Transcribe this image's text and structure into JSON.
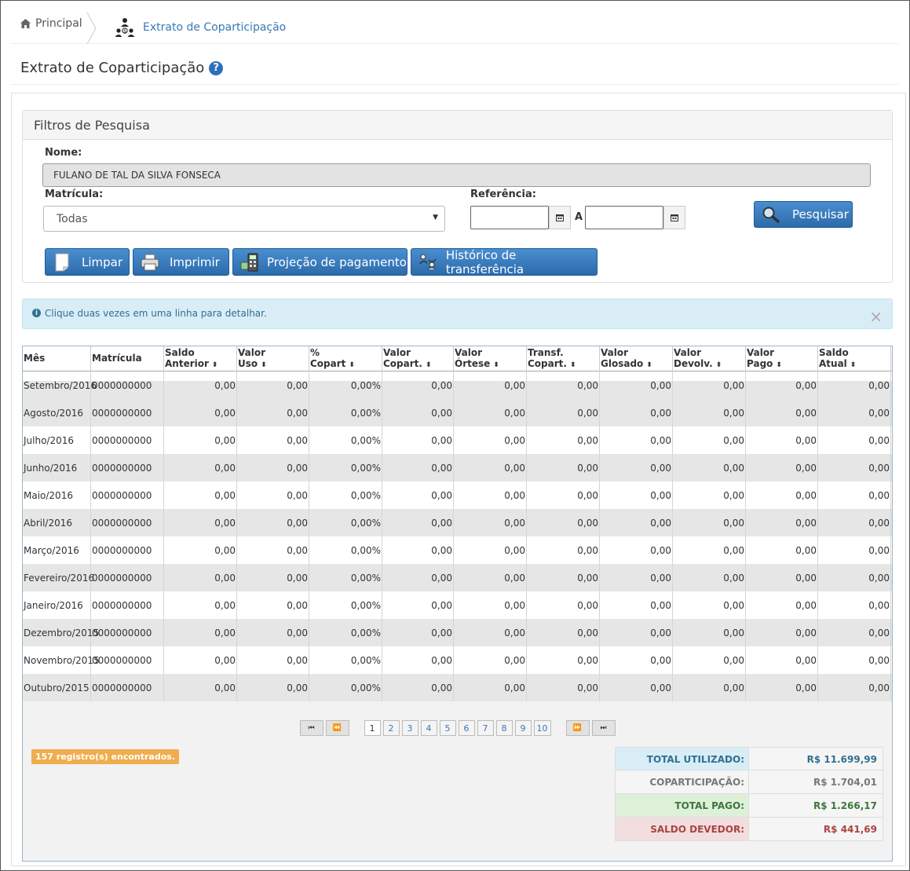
{
  "breadcrumb": {
    "home": "Principal",
    "current": "Extrato de Coparticipação"
  },
  "page_title": "Extrato de Coparticipação",
  "filters": {
    "heading": "Filtros de Pesquisa",
    "nome_label": "Nome:",
    "nome_value": "FULANO DE TAL DA SILVA FONSECA",
    "matricula_label": "Matrícula:",
    "matricula_value": "Todas",
    "referencia_label": "Referência:",
    "referencia_sep": "A",
    "buttons": {
      "pesquisar": "Pesquisar",
      "limpar": "Limpar",
      "imprimir": "Imprimir",
      "projecao": "Projeção de pagamento",
      "historico": "Histórico de transferência"
    }
  },
  "alert": {
    "text": "Clique duas vezes em uma linha para detalhar.",
    "close": "×"
  },
  "grid": {
    "columns": [
      {
        "l1": "Mês",
        "l2": "",
        "sortable": false
      },
      {
        "l1": "Matrícula",
        "l2": "",
        "sortable": false
      },
      {
        "l1": "Saldo",
        "l2": "Anterior",
        "sortable": true
      },
      {
        "l1": "Valor",
        "l2": "Uso",
        "sortable": true
      },
      {
        "l1": "%",
        "l2": "Copart",
        "sortable": true
      },
      {
        "l1": "Valor",
        "l2": "Copart.",
        "sortable": true
      },
      {
        "l1": "Valor",
        "l2": "Órtese",
        "sortable": true
      },
      {
        "l1": "Transf.",
        "l2": "Copart.",
        "sortable": true
      },
      {
        "l1": "Valor",
        "l2": "Glosado",
        "sortable": true
      },
      {
        "l1": "Valor",
        "l2": "Devolv.",
        "sortable": true
      },
      {
        "l1": "Valor",
        "l2": "Pago",
        "sortable": true
      },
      {
        "l1": "Saldo",
        "l2": "Atual",
        "sortable": true
      }
    ],
    "rows": [
      [
        "Setembro/2016",
        "0000000000",
        "0,00",
        "0,00",
        "0,00%",
        "0,00",
        "0,00",
        "0,00",
        "0,00",
        "0,00",
        "0,00",
        "0,00"
      ],
      [
        "Agosto/2016",
        "0000000000",
        "0,00",
        "0,00",
        "0,00%",
        "0,00",
        "0,00",
        "0,00",
        "0,00",
        "0,00",
        "0,00",
        "0,00"
      ],
      [
        "Julho/2016",
        "0000000000",
        "0,00",
        "0,00",
        "0,00%",
        "0,00",
        "0,00",
        "0,00",
        "0,00",
        "0,00",
        "0,00",
        "0,00"
      ],
      [
        "Junho/2016",
        "0000000000",
        "0,00",
        "0,00",
        "0,00%",
        "0,00",
        "0,00",
        "0,00",
        "0,00",
        "0,00",
        "0,00",
        "0,00"
      ],
      [
        "Maio/2016",
        "0000000000",
        "0,00",
        "0,00",
        "0,00%",
        "0,00",
        "0,00",
        "0,00",
        "0,00",
        "0,00",
        "0,00",
        "0,00"
      ],
      [
        "Abril/2016",
        "0000000000",
        "0,00",
        "0,00",
        "0,00%",
        "0,00",
        "0,00",
        "0,00",
        "0,00",
        "0,00",
        "0,00",
        "0,00"
      ],
      [
        "Março/2016",
        "0000000000",
        "0,00",
        "0,00",
        "0,00%",
        "0,00",
        "0,00",
        "0,00",
        "0,00",
        "0,00",
        "0,00",
        "0,00"
      ],
      [
        "Fevereiro/2016",
        "0000000000",
        "0,00",
        "0,00",
        "0,00%",
        "0,00",
        "0,00",
        "0,00",
        "0,00",
        "0,00",
        "0,00",
        "0,00"
      ],
      [
        "Janeiro/2016",
        "0000000000",
        "0,00",
        "0,00",
        "0,00%",
        "0,00",
        "0,00",
        "0,00",
        "0,00",
        "0,00",
        "0,00",
        "0,00"
      ],
      [
        "Dezembro/2015",
        "0000000000",
        "0,00",
        "0,00",
        "0,00%",
        "0,00",
        "0,00",
        "0,00",
        "0,00",
        "0,00",
        "0,00",
        "0,00"
      ],
      [
        "Novembro/2015",
        "0000000000",
        "0,00",
        "0,00",
        "0,00%",
        "0,00",
        "0,00",
        "0,00",
        "0,00",
        "0,00",
        "0,00",
        "0,00"
      ],
      [
        "Outubro/2015",
        "0000000000",
        "0,00",
        "0,00",
        "0,00%",
        "0,00",
        "0,00",
        "0,00",
        "0,00",
        "0,00",
        "0,00",
        "0,00"
      ]
    ]
  },
  "pager": {
    "first": "⏮",
    "prev": "⏪",
    "next": "⏩",
    "last": "⏭",
    "pages": [
      "1",
      "2",
      "3",
      "4",
      "5",
      "6",
      "7",
      "8",
      "9",
      "10"
    ],
    "current": "1"
  },
  "records_badge": "157 registro(s) encontrados.",
  "totals": [
    {
      "label": "TOTAL UTILIZADO:",
      "value": "R$ 11.699,99",
      "bg": "#d9edf7",
      "color": "#31708f"
    },
    {
      "label": "COPARTICIPAÇÃO:",
      "value": "R$ 1.704,01",
      "bg": "#f5f5f5",
      "color": "#777777"
    },
    {
      "label": "TOTAL PAGO:",
      "value": "R$ 1.266,17",
      "bg": "#dff0d8",
      "color": "#3c763d"
    },
    {
      "label": "SALDO DEVEDOR:",
      "value": "R$ 441,69",
      "bg": "#f2dede",
      "color": "#a94442"
    }
  ]
}
